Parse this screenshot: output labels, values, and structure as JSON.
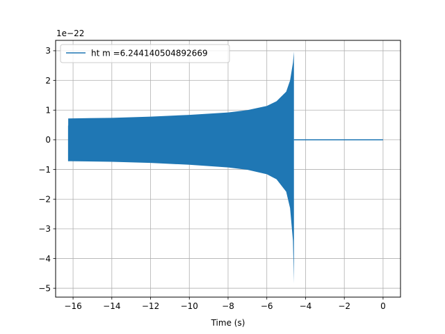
{
  "chart_data": {
    "type": "line",
    "title": "",
    "xlabel": "Time (s)",
    "ylabel": "",
    "y_multiplier_label": "1e−22",
    "xlim": [
      -16.9,
      0.9
    ],
    "ylim": [
      -5.3,
      3.35
    ],
    "xticks": [
      -16,
      -14,
      -12,
      -10,
      -8,
      -6,
      -4,
      -2,
      0
    ],
    "xtick_labels": [
      "−16",
      "−14",
      "−12",
      "−10",
      "−8",
      "−6",
      "−4",
      "−2",
      "0"
    ],
    "yticks": [
      -5,
      -4,
      -3,
      -2,
      -1,
      0,
      1,
      2,
      3
    ],
    "ytick_labels": [
      "−5",
      "−4",
      "−3",
      "−2",
      "−1",
      "0",
      "1",
      "2",
      "3"
    ],
    "grid": true,
    "legend_position": "top-left",
    "series": [
      {
        "name": "ht m =6.244140504892669",
        "color": "#1f77b4",
        "signal_start": -16.25,
        "merger_time": -4.6,
        "end_time": 0.0,
        "envelope": [
          {
            "x": -16.25,
            "upper": 0.72,
            "lower": -0.72
          },
          {
            "x": -14.0,
            "upper": 0.74,
            "lower": -0.74
          },
          {
            "x": -12.0,
            "upper": 0.78,
            "lower": -0.78
          },
          {
            "x": -10.0,
            "upper": 0.84,
            "lower": -0.84
          },
          {
            "x": -8.0,
            "upper": 0.92,
            "lower": -0.93
          },
          {
            "x": -7.0,
            "upper": 1.0,
            "lower": -1.01
          },
          {
            "x": -6.0,
            "upper": 1.14,
            "lower": -1.16
          },
          {
            "x": -5.5,
            "upper": 1.3,
            "lower": -1.33
          },
          {
            "x": -5.0,
            "upper": 1.62,
            "lower": -1.75
          },
          {
            "x": -4.8,
            "upper": 2.0,
            "lower": -2.3
          },
          {
            "x": -4.65,
            "upper": 2.6,
            "lower": -3.4
          },
          {
            "x": -4.6,
            "upper": 2.97,
            "lower": -4.83
          }
        ]
      }
    ]
  }
}
